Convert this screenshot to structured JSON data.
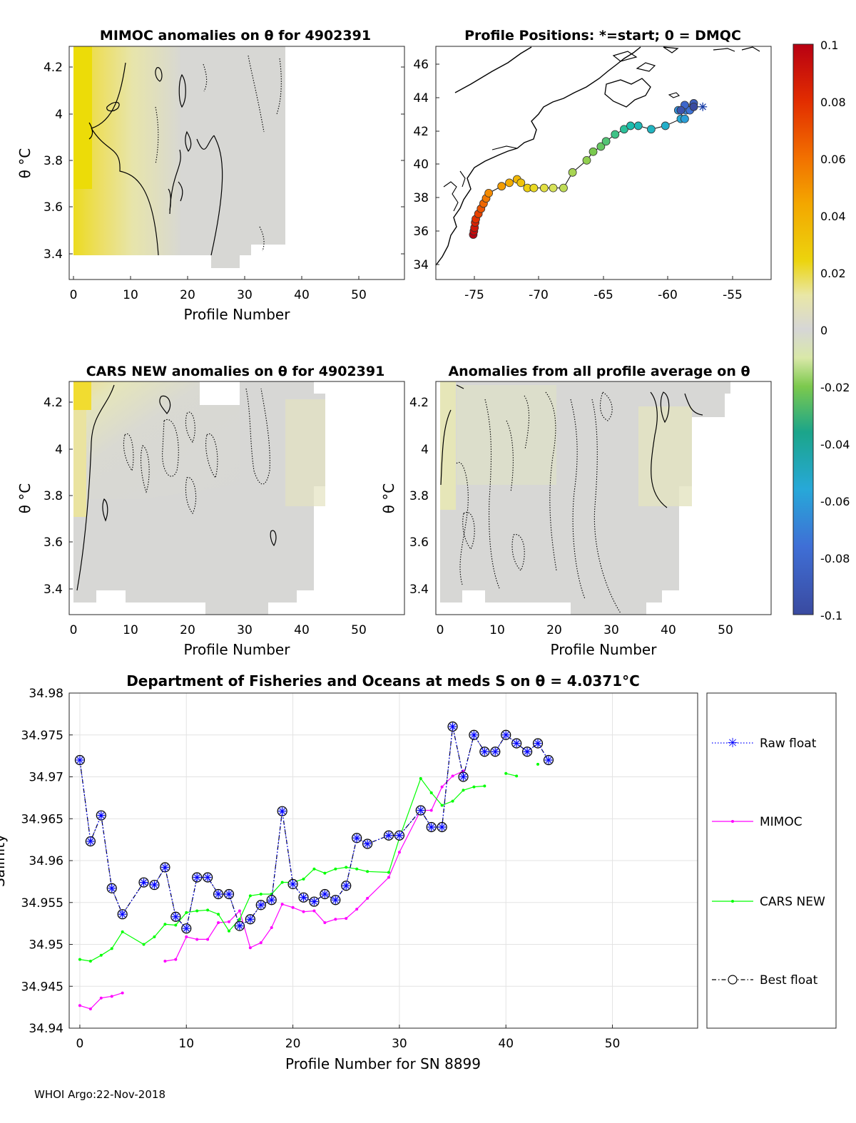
{
  "footer": "WHOI Argo:22-Nov-2018",
  "panels": {
    "mimoc": {
      "title": "MIMOC anomalies on θ  for 4902391",
      "xlabel": "Profile Number",
      "ylabel": "θ °C",
      "xticks": [
        "0",
        "10",
        "20",
        "30",
        "40",
        "50"
      ],
      "yticks": [
        "4.2",
        "4",
        "3.8",
        "3.6",
        "3.4"
      ]
    },
    "map": {
      "title": "Profile Positions: *=start; 0 = DMQC",
      "xticks": [
        "-75",
        "-70",
        "-65",
        "-60",
        "-55"
      ],
      "yticks": [
        "46",
        "44",
        "42",
        "40",
        "38",
        "36",
        "34"
      ]
    },
    "cars": {
      "title": "CARS NEW anomalies on θ for 4902391",
      "xlabel": "Profile Number",
      "ylabel": "θ °C",
      "xticks": [
        "0",
        "10",
        "20",
        "30",
        "40",
        "50"
      ],
      "yticks": [
        "4.2",
        "4",
        "3.8",
        "3.6",
        "3.4"
      ]
    },
    "avg": {
      "title": "Anomalies from all profile average on θ",
      "xlabel": "Profile Number",
      "ylabel": "θ °C",
      "xticks": [
        "0",
        "10",
        "20",
        "30",
        "40",
        "50"
      ],
      "yticks": [
        "4.2",
        "4",
        "3.8",
        "3.6",
        "3.4"
      ]
    }
  },
  "colorbar": {
    "ticks": [
      "0.1",
      "0.08",
      "0.06",
      "0.04",
      "0.02",
      "0",
      "-0.02",
      "-0.04",
      "-0.06",
      "-0.08",
      "-0.1"
    ]
  },
  "chart_data": [
    {
      "type": "line",
      "title": "Department of Fisheries and Oceans at meds S on θ = 4.0371°C",
      "xlabel": "Profile Number for SN 8899",
      "ylabel": "Salinity",
      "xlim": [
        -1,
        58
      ],
      "ylim": [
        34.94,
        34.98
      ],
      "xticks": [
        "0",
        "10",
        "20",
        "30",
        "40",
        "50"
      ],
      "yticks": [
        "34.98",
        "34.975",
        "34.97",
        "34.965",
        "34.96",
        "34.955",
        "34.95",
        "34.945",
        "34.94"
      ],
      "legend_position": "right-outside",
      "series": [
        {
          "name": "Raw float",
          "color": "#0000ff",
          "style": "dotted-star",
          "x": [
            0,
            1,
            2,
            3,
            4,
            6,
            7,
            8,
            9,
            10,
            11,
            12,
            13,
            14,
            15,
            16,
            17,
            18,
            19,
            20,
            21,
            22,
            23,
            24,
            25,
            26,
            27,
            29,
            30,
            32,
            33,
            34,
            35,
            36,
            37,
            38,
            39,
            40,
            41,
            42,
            43,
            44
          ],
          "y": [
            34.972,
            34.9623,
            34.9654,
            34.9567,
            34.9536,
            34.9574,
            34.9571,
            34.9592,
            34.9533,
            34.9519,
            34.958,
            34.958,
            34.956,
            34.956,
            34.9522,
            34.953,
            34.9547,
            34.9553,
            34.9659,
            34.9572,
            34.9556,
            34.9551,
            34.956,
            34.9553,
            34.957,
            34.9627,
            34.962,
            34.963,
            34.963,
            34.966,
            34.964,
            34.964,
            34.976,
            34.97,
            34.975,
            34.973,
            34.973,
            34.975,
            34.974,
            34.973,
            34.974,
            34.972
          ]
        },
        {
          "name": "MIMOC",
          "color": "#ff00ff",
          "style": "solid-dot",
          "x": [
            0,
            1,
            2,
            3,
            4,
            null,
            8,
            9,
            10,
            11,
            12,
            13,
            14,
            15,
            16,
            17,
            18,
            19,
            20,
            21,
            22,
            23,
            24,
            25,
            26,
            27,
            29,
            30,
            32,
            33,
            34,
            35,
            36
          ],
          "y": [
            34.9427,
            34.9423,
            34.9436,
            34.9438,
            34.9442,
            null,
            34.948,
            34.9482,
            34.9509,
            34.9506,
            34.9506,
            34.9526,
            34.9527,
            34.954,
            34.9496,
            34.9502,
            34.952,
            34.9548,
            34.9544,
            34.9539,
            34.954,
            34.9526,
            34.953,
            34.9531,
            34.9542,
            34.9555,
            34.958,
            34.961,
            34.966,
            34.966,
            34.9688,
            34.9701,
            34.9707
          ]
        },
        {
          "name": "CARS NEW",
          "color": "#00ff00",
          "style": "solid-dot",
          "x": [
            0,
            1,
            2,
            3,
            4,
            6,
            7,
            8,
            9,
            10,
            11,
            12,
            13,
            14,
            15,
            16,
            17,
            18,
            19,
            20,
            21,
            22,
            23,
            24,
            25,
            26,
            27,
            29,
            30,
            32,
            33,
            34,
            35,
            36,
            37,
            38,
            null,
            40,
            41,
            null,
            43
          ],
          "y": [
            34.9482,
            34.948,
            34.9487,
            34.9495,
            34.9515,
            34.95,
            34.9509,
            34.9524,
            34.9523,
            34.9538,
            34.954,
            34.9541,
            34.9536,
            34.9516,
            34.953,
            34.9558,
            34.956,
            34.956,
            34.9574,
            34.9574,
            34.9578,
            34.959,
            34.9585,
            34.959,
            34.9592,
            34.959,
            34.9587,
            34.9586,
            34.9627,
            34.9698,
            34.9681,
            34.9666,
            34.9671,
            34.9684,
            34.9688,
            34.9689,
            null,
            34.9704,
            34.9701,
            null,
            34.9715
          ]
        },
        {
          "name": "Best float",
          "color": "#000000",
          "style": "dashdot-circle",
          "x": [
            0,
            1,
            2,
            3,
            4,
            6,
            7,
            8,
            9,
            10,
            11,
            12,
            13,
            14,
            15,
            16,
            17,
            18,
            19,
            20,
            21,
            22,
            23,
            24,
            25,
            26,
            27,
            29,
            30,
            32,
            33,
            34,
            35,
            36,
            37,
            38,
            39,
            40,
            41,
            42,
            43,
            44
          ],
          "y": [
            34.972,
            34.9623,
            34.9654,
            34.9567,
            34.9536,
            34.9574,
            34.9571,
            34.9592,
            34.9533,
            34.9519,
            34.958,
            34.958,
            34.956,
            34.956,
            34.9522,
            34.953,
            34.9547,
            34.9553,
            34.9659,
            34.9572,
            34.9556,
            34.9551,
            34.956,
            34.9553,
            34.957,
            34.9627,
            34.962,
            34.963,
            34.963,
            34.966,
            34.964,
            34.964,
            34.976,
            34.97,
            34.975,
            34.973,
            34.973,
            34.975,
            34.974,
            34.973,
            34.974,
            34.972
          ]
        }
      ]
    },
    {
      "type": "scatter",
      "title": "Profile Positions: *=start; 0 = DMQC",
      "xlim": [
        -78,
        -52
      ],
      "ylim": [
        33.5,
        47
      ],
      "lon": [
        -75.1,
        -75.05,
        -75.0,
        -74.95,
        -74.9,
        -74.7,
        -74.5,
        -74.3,
        -74.1,
        -73.9,
        -72.9,
        -72.3,
        -71.7,
        -71.4,
        -70.9,
        -70.4,
        -69.6,
        -68.9,
        -68.1,
        -67.4,
        -66.3,
        -65.8,
        -65.2,
        -64.8,
        -64.1,
        -63.4,
        -62.9,
        -62.3,
        -61.3,
        -60.2,
        -59.0,
        -58.7,
        -59.2,
        -58.6,
        -58.3,
        -58.7,
        -58.0,
        -59.0,
        -58.0
      ],
      "lat": [
        36.1,
        36.3,
        36.5,
        36.8,
        37.0,
        37.3,
        37.6,
        37.9,
        38.2,
        38.5,
        38.9,
        39.1,
        39.3,
        39.1,
        38.8,
        38.8,
        38.8,
        38.8,
        38.8,
        39.7,
        40.4,
        40.9,
        41.2,
        41.5,
        41.9,
        42.2,
        42.4,
        42.4,
        42.2,
        42.4,
        42.8,
        42.8,
        43.3,
        43.3,
        43.3,
        43.6,
        43.7,
        43.3,
        43.5
      ],
      "start": {
        "lon": -57.3,
        "lat": 43.5
      },
      "colorbar_range": [
        -0.1,
        0.1
      ]
    }
  ]
}
